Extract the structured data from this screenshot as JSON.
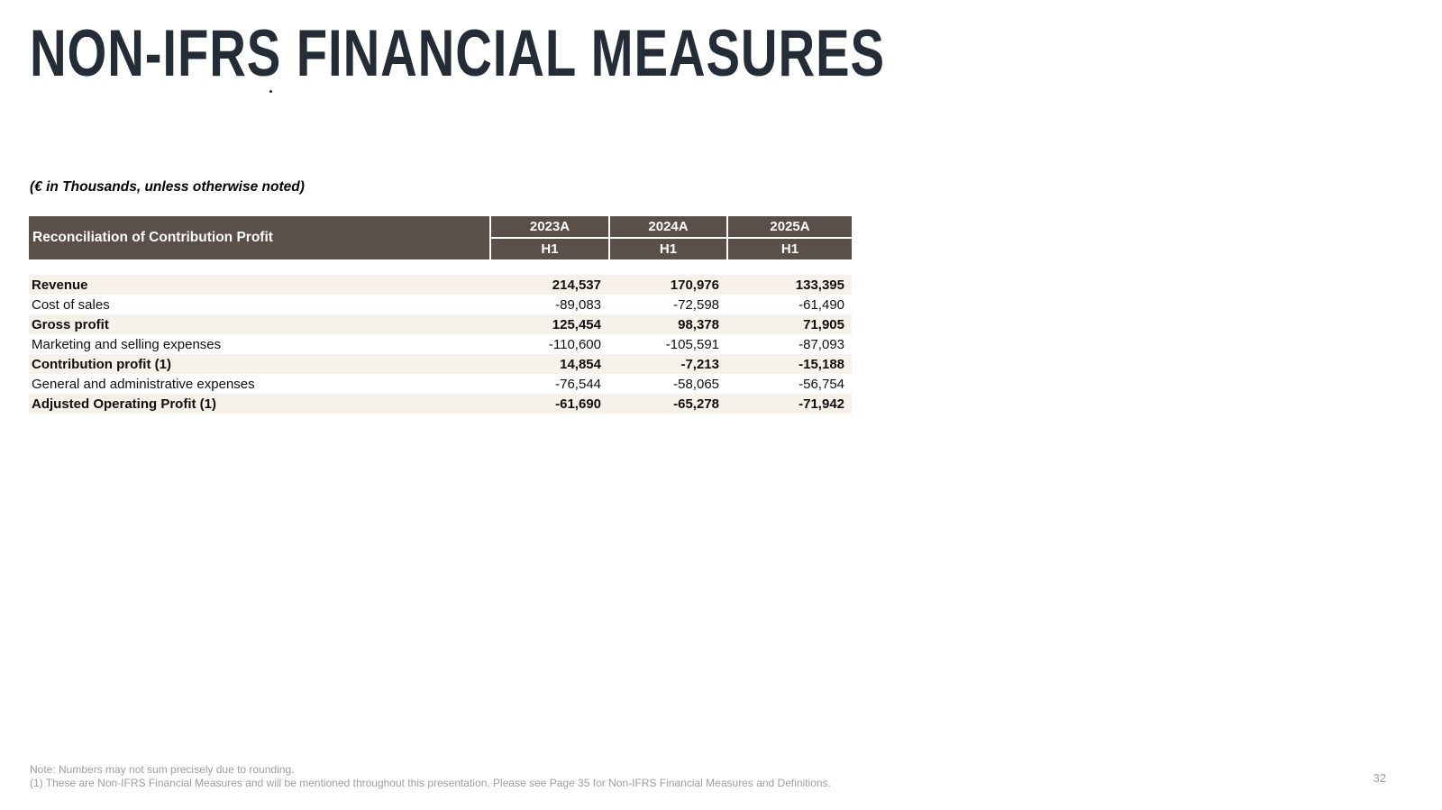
{
  "slide": {
    "title": "NON-IFRS FINANCIAL MEASURES",
    "units_note": "(€ in Thousands, unless otherwise noted)",
    "page_number": "32"
  },
  "table": {
    "header": {
      "label": "Reconciliation of Contribution Profit",
      "years": [
        "2023A",
        "2024A",
        "2025A"
      ],
      "periods": [
        "H1",
        "H1",
        "H1"
      ]
    },
    "rows": [
      {
        "label": "Revenue",
        "values": [
          "214,537",
          "170,976",
          "133,395"
        ],
        "bold": true
      },
      {
        "label": "Cost of sales",
        "values": [
          "-89,083",
          "-72,598",
          "-61,490"
        ],
        "bold": false
      },
      {
        "label": "Gross profit",
        "values": [
          "125,454",
          "98,378",
          "71,905"
        ],
        "bold": true
      },
      {
        "label": "Marketing and selling expenses",
        "values": [
          "-110,600",
          "-105,591",
          "-87,093"
        ],
        "bold": false
      },
      {
        "label": "Contribution profit (1)",
        "values": [
          "14,854",
          "-7,213",
          "-15,188"
        ],
        "bold": true
      },
      {
        "label": "General and administrative expenses",
        "values": [
          "-76,544",
          "-58,065",
          "-56,754"
        ],
        "bold": false
      },
      {
        "label": "Adjusted Operating Profit (1)",
        "values": [
          "-61,690",
          "-65,278",
          "-71,942"
        ],
        "bold": true
      }
    ]
  },
  "footnotes": {
    "note": "Note: Numbers may not sum precisely due to rounding.",
    "footnote_1": "(1) These are Non-IFRS Financial Measures and will be mentioned throughout this presentation. Please see Page 35 for Non-IFRS Financial Measures and Definitions."
  },
  "colors": {
    "title_text": "#242d37",
    "table_header_bg": "#5a5049",
    "row_alt_bg": "#f6f2ea",
    "footnote_gray": "#9e9e9e"
  }
}
